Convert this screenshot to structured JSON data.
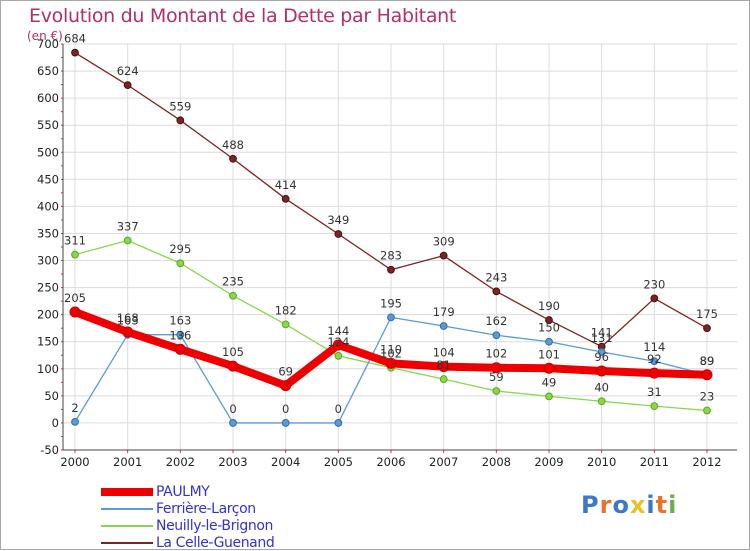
{
  "chart_data": {
    "type": "line",
    "title": "Evolution du Montant de la Dette par Habitant",
    "subtitle": "(en €)",
    "categories": [
      "2000",
      "2001",
      "2002",
      "2003",
      "2004",
      "2005",
      "2006",
      "2007",
      "2008",
      "2009",
      "2010",
      "2011",
      "2012"
    ],
    "ylim": [
      -50,
      700
    ],
    "yticks": [
      -50,
      0,
      50,
      100,
      150,
      200,
      250,
      300,
      350,
      400,
      450,
      500,
      550,
      600,
      650,
      700
    ],
    "grid": true,
    "legend_placement": "bottom-left",
    "series": [
      {
        "name": "PAULMY",
        "color": "#ee0000",
        "values": [
          205,
          168,
          136,
          105,
          69,
          144,
          110,
          104,
          102,
          101,
          96,
          92,
          89
        ],
        "labels": [
          "205",
          "168",
          "136",
          "105",
          "69",
          "144",
          "110",
          "104",
          "102",
          "101",
          "96",
          "92",
          "89"
        ]
      },
      {
        "name": "Ferrière-Larçon",
        "color": "#5b9bd5",
        "values": [
          2,
          163,
          163,
          0,
          0,
          0,
          195,
          179,
          162,
          150,
          131,
          114,
          89
        ],
        "labels": [
          "2",
          "163",
          "163",
          "0",
          "0",
          "0",
          "195",
          "179",
          "162",
          "150",
          "131",
          "114",
          "89"
        ]
      },
      {
        "name": "Neuilly-le-Brignon",
        "color": "#88d84a",
        "values": [
          311,
          337,
          295,
          235,
          182,
          124,
          102,
          81,
          59,
          49,
          40,
          31,
          23
        ],
        "labels": [
          "311",
          "337",
          "295",
          "235",
          "182",
          "124",
          "102",
          "81",
          "59",
          "49",
          "40",
          "31",
          "23"
        ]
      },
      {
        "name": "La Celle-Guenand",
        "color": "#7a2424",
        "values": [
          684,
          624,
          559,
          488,
          414,
          349,
          283,
          309,
          243,
          190,
          141,
          230,
          175
        ],
        "labels": [
          "684",
          "624",
          "559",
          "488",
          "414",
          "349",
          "283",
          "309",
          "243",
          "190",
          "141",
          "230",
          "175"
        ]
      }
    ]
  },
  "logo": {
    "text": "Proxiti",
    "letters": [
      "P",
      "r",
      "o",
      "x",
      "i",
      "t",
      "i"
    ],
    "colors": [
      "#3a78c8",
      "#e8732a",
      "#3a78c8",
      "#e8c22a",
      "#3a78c8",
      "#e8732a",
      "#6ab04c"
    ]
  }
}
